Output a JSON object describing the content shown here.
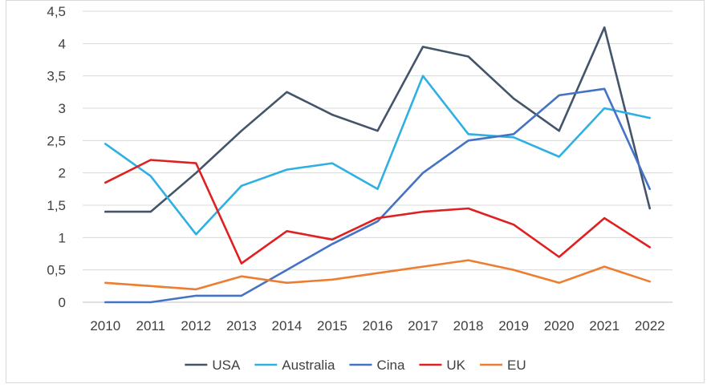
{
  "chart_data": {
    "type": "line",
    "categories": [
      "2010",
      "2011",
      "2012",
      "2013",
      "2014",
      "2015",
      "2016",
      "2017",
      "2018",
      "2019",
      "2020",
      "2021",
      "2022"
    ],
    "ylim": [
      0,
      4.5
    ],
    "yticks": [
      "0",
      "0,5",
      "1",
      "1,5",
      "2",
      "2,5",
      "3",
      "3,5",
      "4",
      "4,5"
    ],
    "grid": true,
    "legend_position": "bottom",
    "series": [
      {
        "name": "USA",
        "color": "#44546a",
        "values": [
          1.4,
          1.4,
          2.0,
          2.65,
          3.25,
          2.9,
          2.65,
          3.95,
          3.8,
          3.15,
          2.65,
          4.25,
          1.45
        ]
      },
      {
        "name": "Australia",
        "color": "#2fb0e3",
        "values": [
          2.45,
          1.95,
          1.05,
          1.8,
          2.05,
          2.15,
          1.75,
          3.5,
          2.6,
          2.55,
          2.25,
          3.0,
          2.85
        ]
      },
      {
        "name": "Cina",
        "color": "#4472c4",
        "values": [
          0.0,
          0.0,
          0.1,
          0.1,
          0.5,
          0.9,
          1.25,
          2.0,
          2.5,
          2.6,
          3.2,
          3.3,
          1.75
        ]
      },
      {
        "name": "UK",
        "color": "#e02020",
        "values": [
          1.85,
          2.2,
          2.15,
          0.6,
          1.1,
          0.97,
          1.3,
          1.4,
          1.45,
          1.2,
          0.7,
          1.3,
          0.85
        ]
      },
      {
        "name": "EU",
        "color": "#ed7d31",
        "values": [
          0.3,
          0.25,
          0.2,
          0.4,
          0.3,
          0.35,
          0.45,
          0.55,
          0.65,
          0.5,
          0.3,
          0.55,
          0.32
        ]
      }
    ]
  }
}
